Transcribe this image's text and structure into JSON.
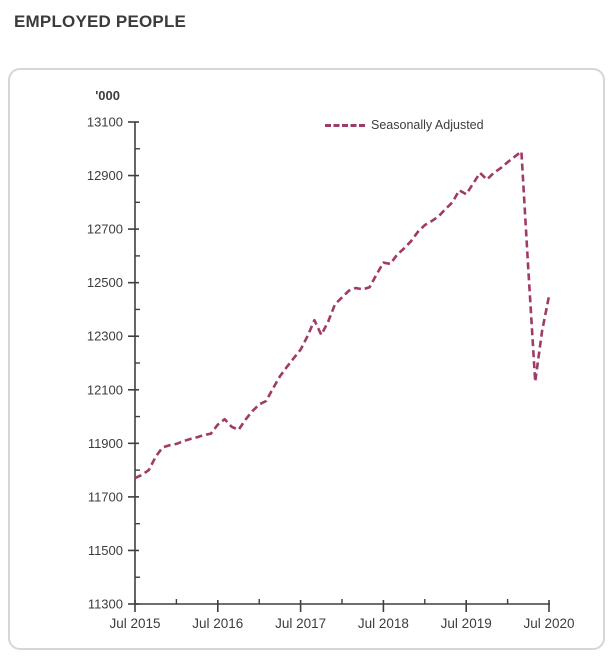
{
  "header": {
    "title": "EMPLOYED PEOPLE"
  },
  "chart_data": {
    "type": "line",
    "title": "EMPLOYED PEOPLE",
    "ylabel": "'000",
    "xlabel": "",
    "grid": false,
    "legend_position": "top-right-inside",
    "line_color": "#a03a66",
    "axis_color": "#3f3f3f",
    "ylim": [
      11300,
      13100
    ],
    "y_major_step": 200,
    "y_minor_step": 100,
    "x_range_months": 60,
    "x_tick_labels": [
      "Jul 2015",
      "Jul 2016",
      "Jul 2017",
      "Jul 2018",
      "Jul 2019",
      "Jul 2020"
    ],
    "x_major_tick_months": [
      0,
      12,
      24,
      36,
      48,
      60
    ],
    "x_minor_tick_months": [
      6,
      18,
      30,
      42,
      54
    ],
    "series": [
      {
        "name": "Seasonally Adjusted",
        "frequency": "monthly",
        "start": "Jul 2015",
        "end": "Jul 2020",
        "values": [
          11770,
          11782,
          11800,
          11850,
          11885,
          11893,
          11898,
          11908,
          11916,
          11923,
          11931,
          11936,
          11970,
          11990,
          11962,
          11950,
          11988,
          12020,
          12045,
          12058,
          12105,
          12150,
          12185,
          12218,
          12250,
          12300,
          12360,
          12305,
          12355,
          12420,
          12445,
          12470,
          12480,
          12475,
          12483,
          12530,
          12575,
          12570,
          12605,
          12628,
          12655,
          12690,
          12715,
          12730,
          12748,
          12775,
          12800,
          12845,
          12830,
          12870,
          12910,
          12885,
          12910,
          12928,
          12950,
          12970,
          12990,
          12550,
          12130,
          12320,
          12450
        ]
      }
    ]
  }
}
